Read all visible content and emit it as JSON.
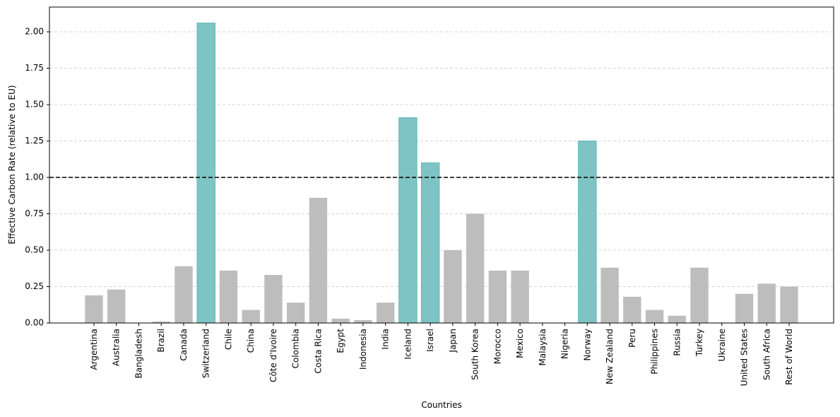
{
  "chart_data": {
    "type": "bar",
    "x_label": "Countries",
    "y_label": "Effective Carbon Rate (relative to EU)",
    "categories": [
      "Argentina",
      "Australia",
      "Bangladesh",
      "Brazil",
      "Canada",
      "Switzerland",
      "Chile",
      "China",
      "Côte d'Ivoire",
      "Colombia",
      "Costa Rica",
      "Egypt",
      "Indonesia",
      "India",
      "Iceland",
      "Israel",
      "Japan",
      "South Korea",
      "Morocco",
      "Mexico",
      "Malaysia",
      "Nigeria",
      "Norway",
      "New Zealand",
      "Peru",
      "Philippines",
      "Russia",
      "Turkey",
      "Ukraine",
      "United States",
      "South Africa",
      "Rest of World"
    ],
    "values": [
      0.19,
      0.23,
      0,
      0.01,
      0.39,
      2.06,
      0.36,
      0.09,
      0.33,
      0.14,
      0.86,
      0.03,
      0.02,
      0.14,
      1.41,
      1.1,
      0.5,
      0.75,
      0.36,
      0.36,
      0,
      0,
      1.25,
      0.38,
      0.18,
      0.09,
      0.05,
      0.38,
      0.003,
      0.2,
      0.27,
      0.25
    ],
    "colors": [
      "#bdbdbd",
      "#bdbdbd",
      "#bdbdbd",
      "#bdbdbd",
      "#bdbdbd",
      "#7fc4c4",
      "#bdbdbd",
      "#bdbdbd",
      "#bdbdbd",
      "#bdbdbd",
      "#bdbdbd",
      "#bdbdbd",
      "#bdbdbd",
      "#bdbdbd",
      "#7fc4c4",
      "#7fc4c4",
      "#bdbdbd",
      "#bdbdbd",
      "#bdbdbd",
      "#bdbdbd",
      "#bdbdbd",
      "#bdbdbd",
      "#7fc4c4",
      "#bdbdbd",
      "#bdbdbd",
      "#bdbdbd",
      "#bdbdbd",
      "#bdbdbd",
      "#bdbdbd",
      "#bdbdbd",
      "#bdbdbd",
      "#bdbdbd"
    ],
    "ylim": [
      0,
      2.17
    ],
    "yticks": [
      {
        "value": 0,
        "label": "0.00"
      },
      {
        "value": 0.25,
        "label": "0.25"
      },
      {
        "value": 0.5,
        "label": "0.50"
      },
      {
        "value": 0.75,
        "label": "0.75"
      },
      {
        "value": 1,
        "label": "1.00"
      },
      {
        "value": 1.25,
        "label": "1.25"
      },
      {
        "value": 1.5,
        "label": "1.50"
      },
      {
        "value": 1.75,
        "label": "1.75"
      },
      {
        "value": 2,
        "label": "2.00"
      }
    ],
    "grid": true,
    "reference_line": {
      "value": 1,
      "color": "#000000"
    }
  }
}
